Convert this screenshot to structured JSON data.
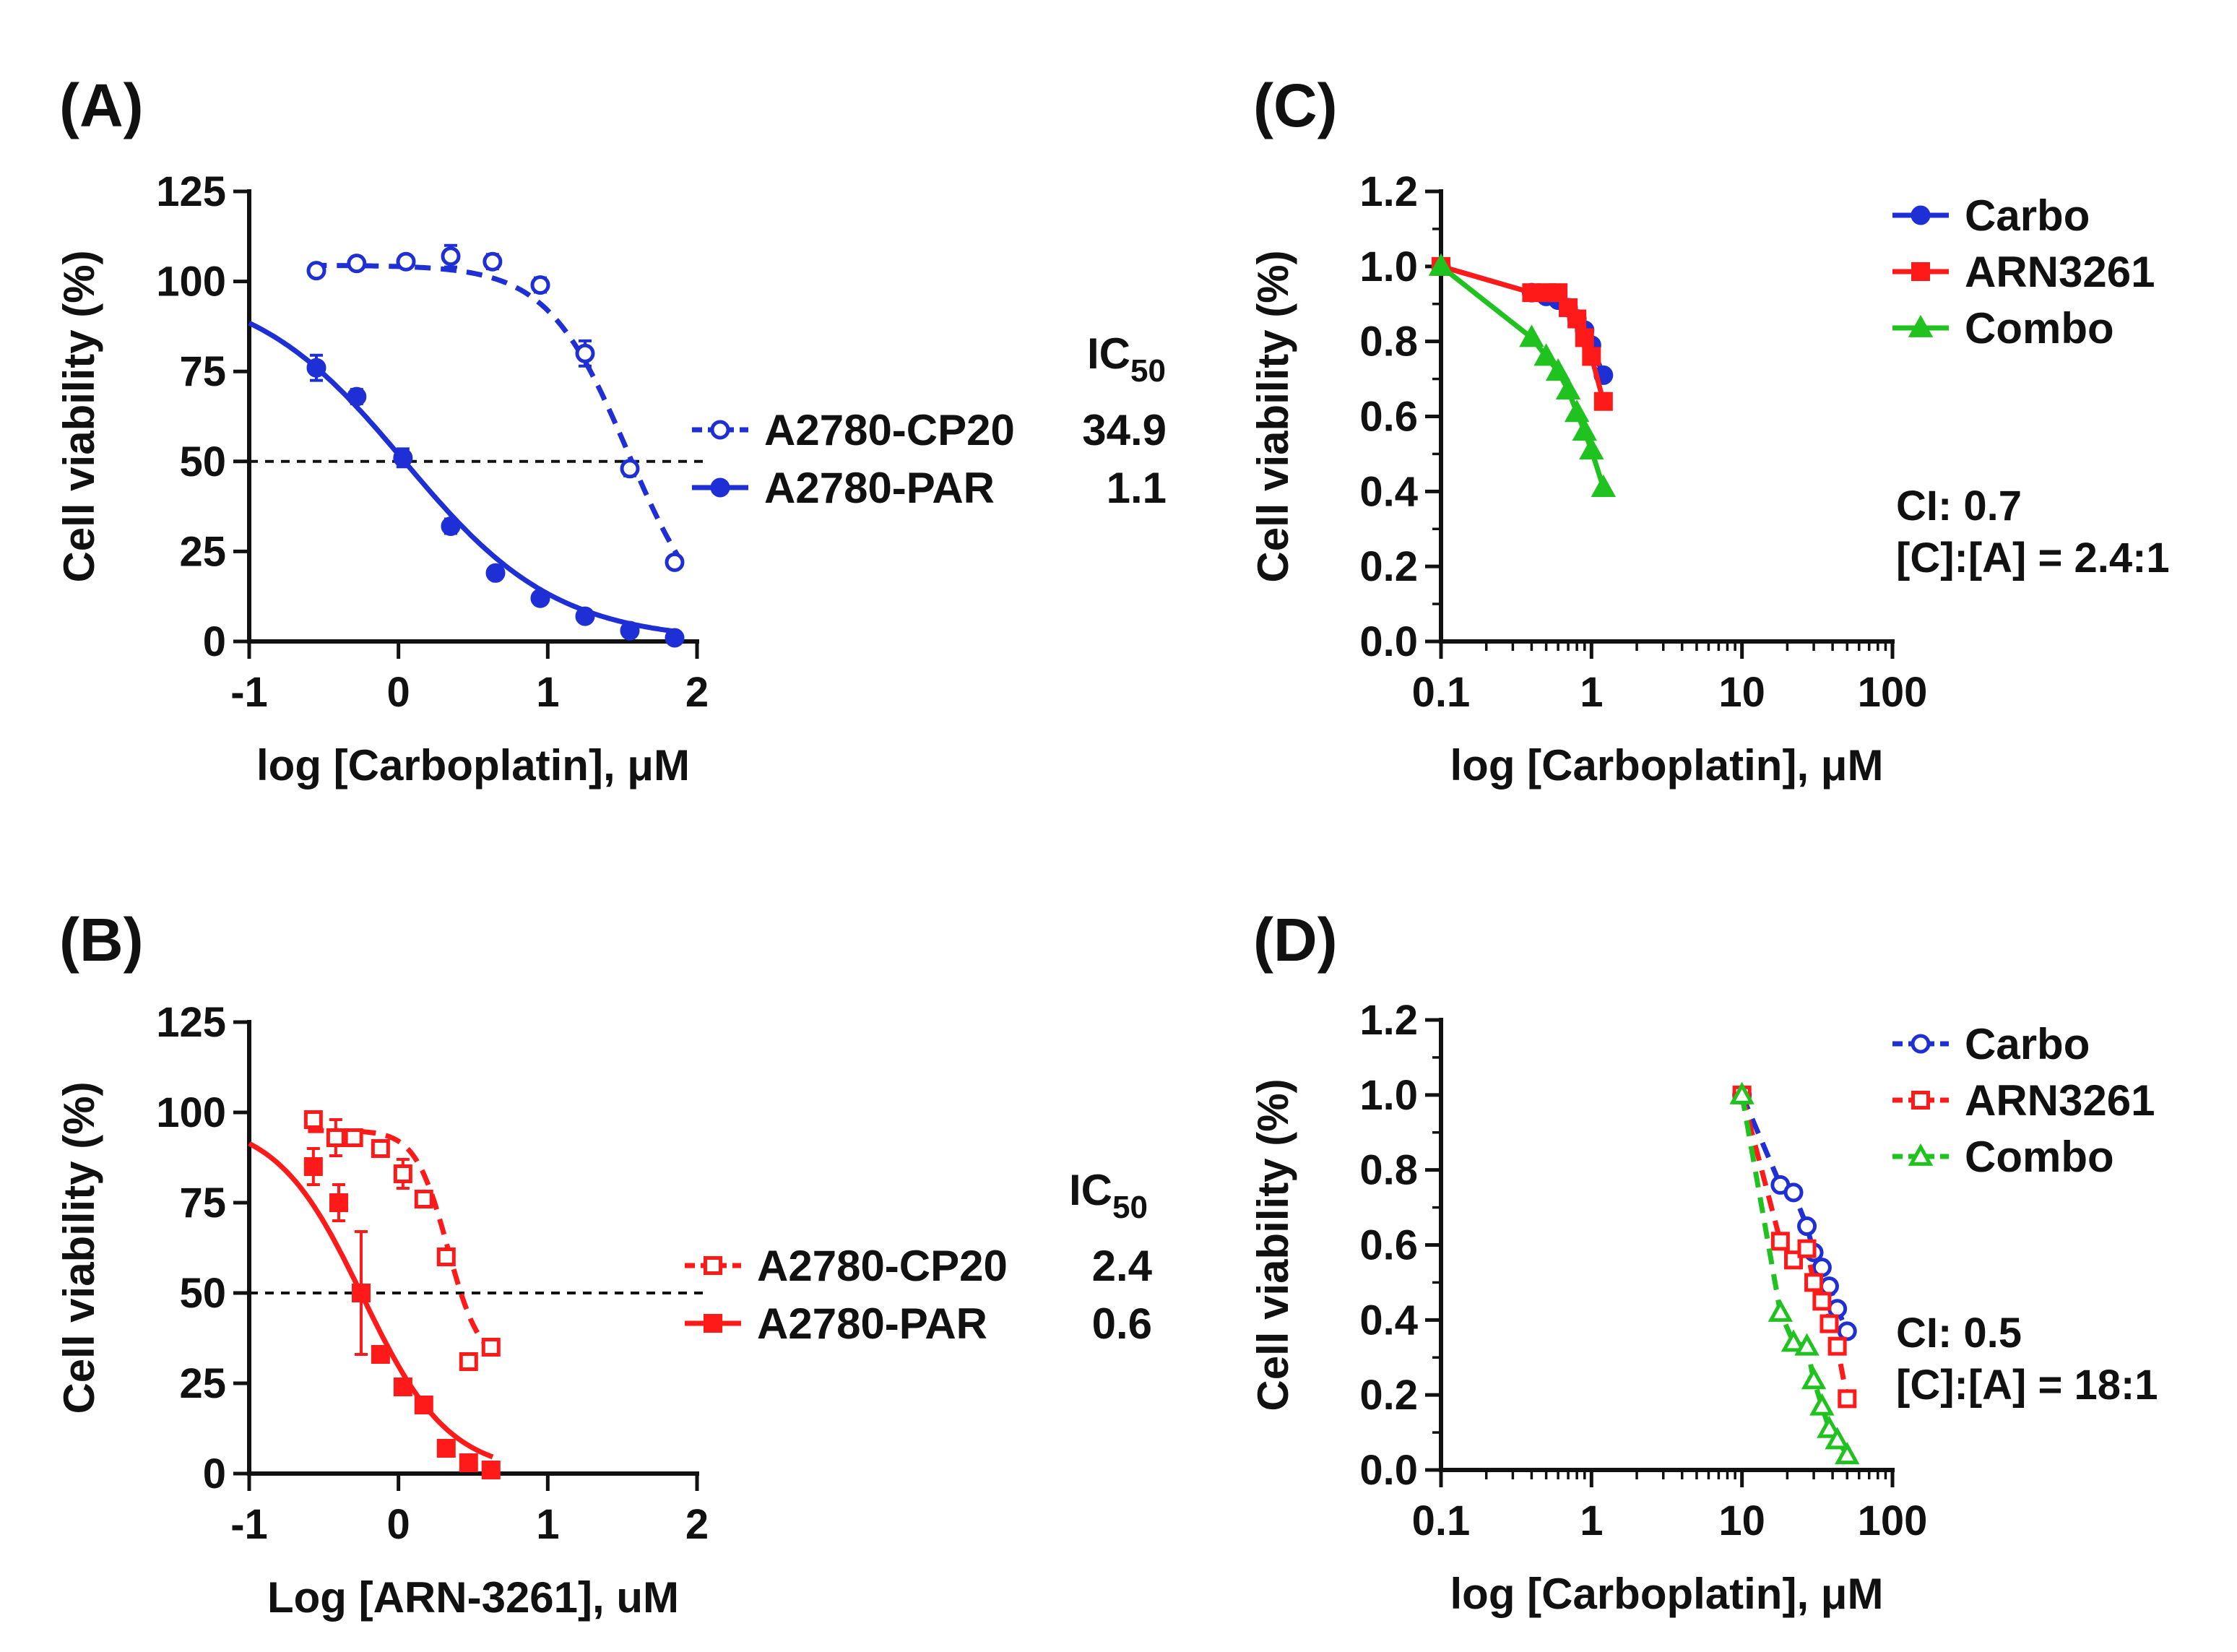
{
  "chart_data": [
    {
      "id": "A",
      "type": "line",
      "panel_label": "(A)",
      "xlabel": "log [Carboplatin], μM",
      "ylabel": "Cell viability (%)",
      "xscale": "linear",
      "xlim": [
        -1,
        2
      ],
      "ylim": [
        0,
        125
      ],
      "xticks": [
        -1,
        0,
        1,
        2
      ],
      "xtick_labels": [
        "-1",
        "0",
        "1",
        "2"
      ],
      "yticks": [
        0,
        25,
        50,
        75,
        100,
        125
      ],
      "ytick_labels": [
        "0",
        "25",
        "50",
        "75",
        "100",
        "125"
      ],
      "reference_line": {
        "y": 50,
        "style": "dashed"
      },
      "legend_title": "IC",
      "legend_title_sub": "50",
      "legend_position": "right",
      "series": [
        {
          "name": "A2780-CP20",
          "ic50": "34.9",
          "color": "#1f2fd6",
          "marker": "circle-open",
          "line_style": "dashed",
          "x": [
            -0.55,
            -0.28,
            0.05,
            0.35,
            0.63,
            0.95,
            1.25,
            1.55,
            1.85
          ],
          "y": [
            103,
            105,
            105.5,
            107,
            105.5,
            99,
            80,
            48,
            22
          ],
          "yerr": [
            1.5,
            1.5,
            1.5,
            3,
            2,
            2,
            3.5,
            2,
            1.5
          ],
          "fit": {
            "top": 104.5,
            "bottom": 0,
            "logic50": 1.54,
            "hill": 1.6
          }
        },
        {
          "name": "A2780-PAR",
          "ic50": "1.1",
          "color": "#1f2fd6",
          "marker": "circle-filled",
          "line_style": "solid",
          "x": [
            -0.55,
            -0.28,
            0.03,
            0.35,
            0.65,
            0.95,
            1.25,
            1.55,
            1.85
          ],
          "y": [
            76,
            68,
            51,
            32,
            19,
            12,
            7,
            3,
            1
          ],
          "yerr": [
            3.5,
            2,
            2.5,
            2,
            1.5,
            1.5,
            1,
            1,
            0.5
          ],
          "fit": {
            "top": 100,
            "bottom": 0,
            "logic50": 0.04,
            "hill": 0.85
          }
        }
      ]
    },
    {
      "id": "B",
      "type": "line",
      "panel_label": "(B)",
      "xlabel": "Log [ARN-3261], uM",
      "ylabel": "Cell viability (%)",
      "xscale": "linear",
      "xlim": [
        -1,
        2
      ],
      "ylim": [
        0,
        125
      ],
      "xticks": [
        -1,
        0,
        1,
        2
      ],
      "xtick_labels": [
        "-1",
        "0",
        "1",
        "2"
      ],
      "yticks": [
        0,
        25,
        50,
        75,
        100,
        125
      ],
      "ytick_labels": [
        "0",
        "25",
        "50",
        "75",
        "100",
        "125"
      ],
      "reference_line": {
        "y": 50,
        "style": "dashed"
      },
      "legend_title": "IC",
      "legend_title_sub": "50",
      "legend_position": "right",
      "series": [
        {
          "name": "A2780-CP20",
          "ic50": "2.4",
          "color": "#ff1a1a",
          "marker": "square-open",
          "line_style": "dashed",
          "x": [
            -0.57,
            -0.42,
            -0.3,
            -0.12,
            0.03,
            0.17,
            0.32,
            0.47,
            0.62
          ],
          "y": [
            98,
            93,
            93,
            90,
            83,
            76,
            60,
            31,
            35
          ],
          "yerr": [
            2,
            5,
            2,
            2,
            4,
            2,
            2,
            2,
            2
          ],
          "fit": {
            "top": 95,
            "bottom": 30,
            "logic50": 0.33,
            "hill": 4
          }
        },
        {
          "name": "A2780-PAR",
          "ic50": "0.6",
          "color": "#ff1a1a",
          "marker": "square-filled",
          "line_style": "solid",
          "x": [
            -0.57,
            -0.4,
            -0.25,
            -0.12,
            0.03,
            0.17,
            0.32,
            0.47,
            0.62
          ],
          "y": [
            85,
            75,
            50,
            33,
            24,
            19,
            7,
            3,
            1
          ],
          "yerr": [
            5,
            5,
            17,
            2,
            2,
            2,
            1,
            1,
            0.5
          ],
          "fit": {
            "top": 98,
            "bottom": 0,
            "logic50": -0.24,
            "hill": 1.5
          }
        }
      ]
    },
    {
      "id": "C",
      "type": "line",
      "panel_label": "(C)",
      "xlabel": "log [Carboplatin], μM",
      "ylabel": "Cell viability (%)",
      "xscale": "log",
      "xlim": [
        0.1,
        100
      ],
      "ylim": [
        0,
        1.2
      ],
      "xticks": [
        0.1,
        1,
        10,
        100
      ],
      "xtick_labels": [
        "0.1",
        "1",
        "10",
        "100"
      ],
      "yticks": [
        0,
        0.2,
        0.4,
        0.6,
        0.8,
        1.0,
        1.2
      ],
      "ytick_labels": [
        "0.0",
        "0.2",
        "0.4",
        "0.6",
        "0.8",
        "1.0",
        "1.2"
      ],
      "legend_position": "top-right",
      "annotations": [
        "CI: 0.7",
        "[C]:[A] = 2.4:1"
      ],
      "series": [
        {
          "name": "Carbo",
          "color": "#1f2fd6",
          "marker": "circle-filled",
          "line_style": "solid",
          "x": [
            0.1,
            0.4,
            0.5,
            0.6,
            0.7,
            0.8,
            0.9,
            1.0,
            1.2
          ],
          "y": [
            1.0,
            0.93,
            0.92,
            0.91,
            0.89,
            0.86,
            0.83,
            0.79,
            0.71
          ]
        },
        {
          "name": "ARN3261",
          "color": "#ff1a1a",
          "marker": "square-filled",
          "line_style": "solid",
          "x": [
            0.1,
            0.4,
            0.5,
            0.6,
            0.7,
            0.8,
            0.9,
            1.0,
            1.2
          ],
          "y": [
            1.0,
            0.93,
            0.93,
            0.93,
            0.89,
            0.86,
            0.81,
            0.76,
            0.64
          ]
        },
        {
          "name": "Combo",
          "color": "#1fc21f",
          "marker": "triangle-filled",
          "line_style": "solid",
          "x": [
            0.1,
            0.4,
            0.5,
            0.6,
            0.7,
            0.8,
            0.9,
            1.0,
            1.2
          ],
          "y": [
            1.0,
            0.81,
            0.76,
            0.72,
            0.67,
            0.61,
            0.56,
            0.51,
            0.41
          ]
        }
      ]
    },
    {
      "id": "D",
      "type": "line",
      "panel_label": "(D)",
      "xlabel": "log [Carboplatin], μM",
      "ylabel": "Cell viability (%)",
      "xscale": "log",
      "xlim": [
        0.1,
        100
      ],
      "ylim": [
        0,
        1.2
      ],
      "xticks": [
        0.1,
        1,
        10,
        100
      ],
      "xtick_labels": [
        "0.1",
        "1",
        "10",
        "100"
      ],
      "yticks": [
        0,
        0.2,
        0.4,
        0.6,
        0.8,
        1.0,
        1.2
      ],
      "ytick_labels": [
        "0.0",
        "0.2",
        "0.4",
        "0.6",
        "0.8",
        "1.0",
        "1.2"
      ],
      "legend_position": "top-right",
      "annotations": [
        "CI: 0.5",
        "[C]:[A] = 18:1"
      ],
      "series": [
        {
          "name": "Carbo",
          "color": "#1f2fd6",
          "marker": "circle-open",
          "line_style": "dashed",
          "x": [
            10,
            18,
            22,
            27,
            30,
            34,
            38,
            43,
            50
          ],
          "y": [
            1.0,
            0.76,
            0.74,
            0.65,
            0.58,
            0.54,
            0.49,
            0.43,
            0.37
          ]
        },
        {
          "name": "ARN3261",
          "color": "#ff1a1a",
          "marker": "square-open",
          "line_style": "dashed",
          "x": [
            10,
            18,
            22,
            27,
            30,
            34,
            38,
            43,
            50
          ],
          "y": [
            1.0,
            0.61,
            0.56,
            0.59,
            0.5,
            0.45,
            0.39,
            0.33,
            0.19
          ]
        },
        {
          "name": "Combo",
          "color": "#1fc21f",
          "marker": "triangle-open",
          "line_style": "dashed",
          "x": [
            10,
            18,
            22,
            27,
            30,
            34,
            38,
            43,
            50
          ],
          "y": [
            1.0,
            0.42,
            0.34,
            0.33,
            0.24,
            0.17,
            0.11,
            0.08,
            0.04
          ]
        }
      ]
    }
  ]
}
